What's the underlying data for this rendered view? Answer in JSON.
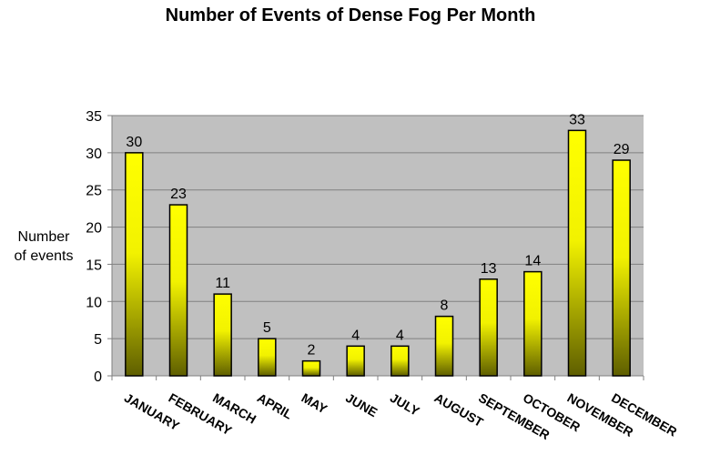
{
  "chart_data": {
    "type": "bar",
    "title": "Number of Events of Dense Fog Per Month",
    "xlabel": "",
    "ylabel_lines": [
      "Number",
      "of events"
    ],
    "categories": [
      "JANUARY",
      "FEBRUARY",
      "MARCH",
      "APRIL",
      "MAY",
      "JUNE",
      "JULY",
      "AUGUST",
      "SEPTEMBER",
      "OCTOBER",
      "NOVEMBER",
      "DECEMBER"
    ],
    "values": [
      30,
      23,
      11,
      5,
      2,
      4,
      4,
      8,
      13,
      14,
      33,
      29
    ],
    "ylim": [
      0,
      35
    ],
    "yticks": [
      0,
      5,
      10,
      15,
      20,
      25,
      30,
      35
    ],
    "grid": true,
    "data_labels": true,
    "legend": false
  },
  "colors": {
    "plot_background": "#c0c0c0",
    "gridline": "#808080",
    "bar_top": "#ffff00",
    "bar_bottom": "#5e5e00",
    "bar_outline": "#000000"
  }
}
